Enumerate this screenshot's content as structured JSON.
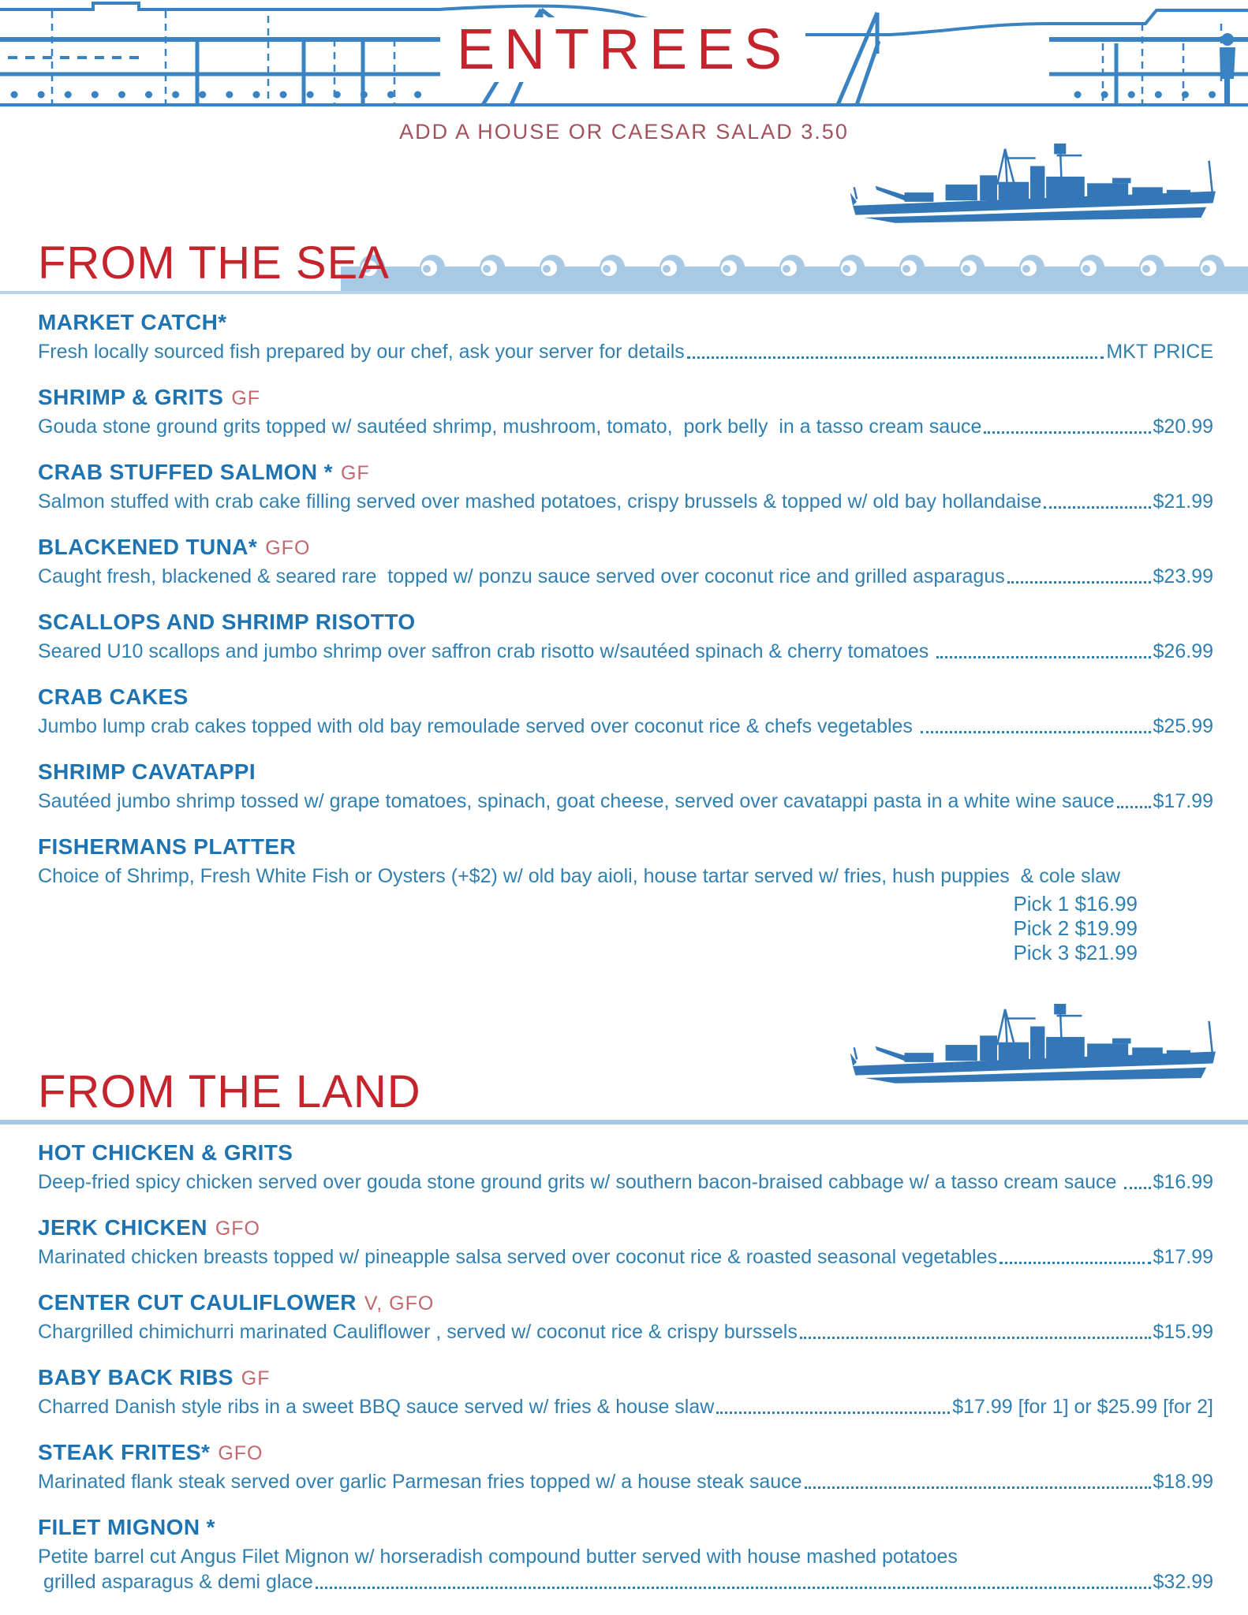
{
  "page": {
    "title": "ENTREES",
    "subtitle": "ADD A HOUSE OR CAESAR SALAD 3.50"
  },
  "colors": {
    "red": "#c4242c",
    "maroon": "#a3525b",
    "headblue": "#1e74b2",
    "textblue": "#2f7fb0",
    "tagred": "#c5676e",
    "wave": "#a7c9e4",
    "ship": "#3377b7",
    "print": "#3a83c2"
  },
  "sections": [
    {
      "id": "from-the-sea",
      "title": "FROM THE SEA",
      "items": [
        {
          "name": "MARKET CATCH*",
          "tag": "",
          "desc": "Fresh locally sourced fish prepared by our chef, ask your server for details",
          "price": "MKT PRICE"
        },
        {
          "name": "SHRIMP & GRITS",
          "tag": "GF",
          "desc": "Gouda stone ground grits topped w/ sautéed shrimp, mushroom, tomato,  pork belly  in a tasso cream sauce",
          "price": "$20.99"
        },
        {
          "name": "CRAB STUFFED SALMON *",
          "tag": "GF",
          "desc": "Salmon stuffed with crab cake filling served over mashed potatoes, crispy brussels & topped w/ old bay hollandaise",
          "price": "$21.99"
        },
        {
          "name": "BLACKENED TUNA*",
          "tag": "GFO",
          "desc": "Caught fresh, blackened & seared rare  topped w/ ponzu sauce served over coconut rice and grilled asparagus",
          "price": "$23.99"
        },
        {
          "name": "SCALLOPS AND SHRIMP RISOTTO",
          "tag": "",
          "desc": "Seared U10 scallops and jumbo shrimp over saffron crab risotto w/sautéed spinach & cherry tomatoes ",
          "price": "$26.99"
        },
        {
          "name": "CRAB CAKES",
          "tag": "",
          "desc": "Jumbo lump crab cakes topped with old bay remoulade served over coconut rice & chefs vegetables ",
          "price": "$25.99"
        },
        {
          "name": "SHRIMP CAVATAPPI",
          "tag": "",
          "desc": "Sautéed jumbo shrimp tossed w/ grape tomatoes, spinach, goat cheese, served over cavatappi pasta in a white wine sauce",
          "price": "$17.99"
        },
        {
          "name": "FISHERMANS PLATTER",
          "tag": "",
          "desc": "Choice of Shrimp, Fresh White Fish or Oysters (+$2) w/ old bay aioli, house tartar served w/ fries, hush puppies  & cole slaw",
          "picks": [
            "Pick 1 $16.99",
            "Pick 2 $19.99",
            "Pick 3 $21.99"
          ]
        }
      ]
    },
    {
      "id": "from-the-land",
      "title": "FROM THE LAND",
      "items": [
        {
          "name": "HOT CHICKEN & GRITS",
          "tag": "",
          "desc": "Deep-fried spicy chicken served over gouda stone ground grits w/ southern bacon-braised cabbage w/ a tasso cream sauce ",
          "price": "$16.99"
        },
        {
          "name": "JERK CHICKEN",
          "tag": "GFO",
          "desc": "Marinated chicken breasts topped w/ pineapple salsa served over coconut rice & roasted seasonal vegetables",
          "price": "$17.99"
        },
        {
          "name": "CENTER CUT CAULIFLOWER",
          "tag": "V, GFO",
          "desc": "Chargrilled chimichurri marinated Cauliflower , served w/ coconut rice & crispy burssels",
          "price": "$15.99"
        },
        {
          "name": "BABY BACK RIBS",
          "tag": "GF",
          "desc": "Charred Danish style ribs in a sweet BBQ sauce served w/ fries & house slaw",
          "price": "$17.99 [for 1] or $25.99 [for 2]"
        },
        {
          "name": "STEAK FRITES*",
          "tag": "GFO",
          "desc": "Marinated flank steak served over garlic Parmesan fries topped w/ a house steak sauce",
          "price": "$18.99"
        },
        {
          "name": "FILET MIGNON *",
          "tag": "",
          "desc": "Petite barrel cut Angus Filet Mignon w/ horseradish compound butter served with house mashed potatoes",
          "desc2": " grilled asparagus & demi glace",
          "price": "$32.99"
        }
      ]
    }
  ]
}
